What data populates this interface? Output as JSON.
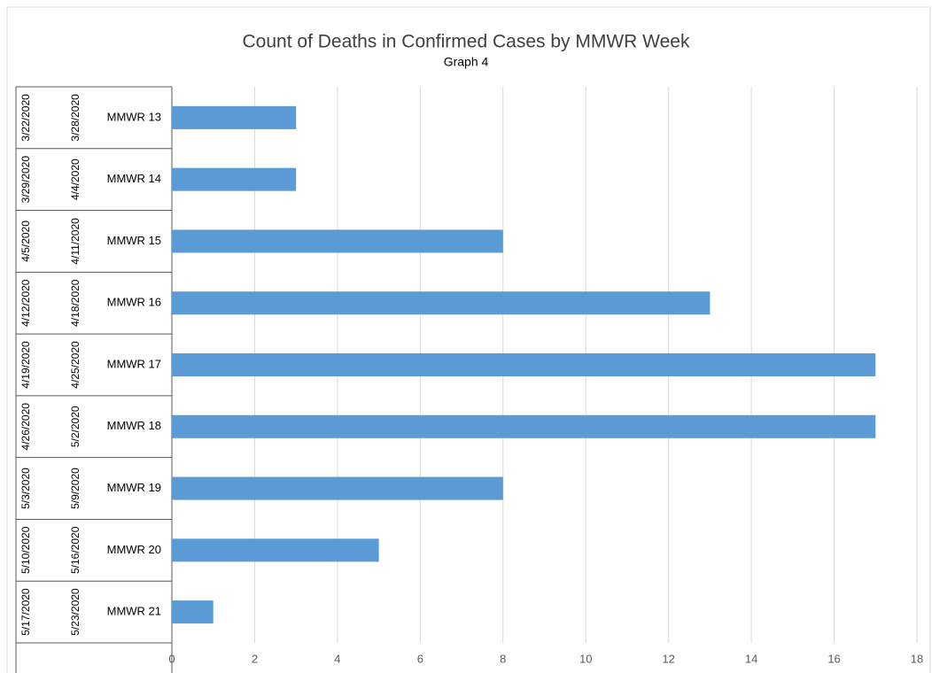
{
  "chart_data": {
    "type": "bar",
    "orientation": "horizontal",
    "title": "Count of Deaths in Confirmed Cases by MMWR Week",
    "subtitle": "Graph 4",
    "categories": [
      "MMWR 13",
      "MMWR 14",
      "MMWR 15",
      "MMWR 16",
      "MMWR 17",
      "MMWR 18",
      "MMWR 19",
      "MMWR 20",
      "MMWR 21"
    ],
    "start_dates": [
      "3/22/2020",
      "3/29/2020",
      "4/5/2020",
      "4/12/2020",
      "4/19/2020",
      "4/26/2020",
      "5/3/2020",
      "5/10/2020",
      "5/17/2020"
    ],
    "end_dates": [
      "3/28/2020",
      "4/4/2020",
      "4/11/2020",
      "4/18/2020",
      "4/25/2020",
      "5/2/2020",
      "5/9/2020",
      "5/16/2020",
      "5/23/2020"
    ],
    "values": [
      3,
      3,
      8,
      13,
      17,
      17,
      8,
      5,
      1
    ],
    "color": "#5b9bd5",
    "xlim": [
      0,
      18
    ],
    "xticks": [
      0,
      2,
      4,
      6,
      8,
      10,
      12,
      14,
      16,
      18
    ],
    "grid": true
  }
}
